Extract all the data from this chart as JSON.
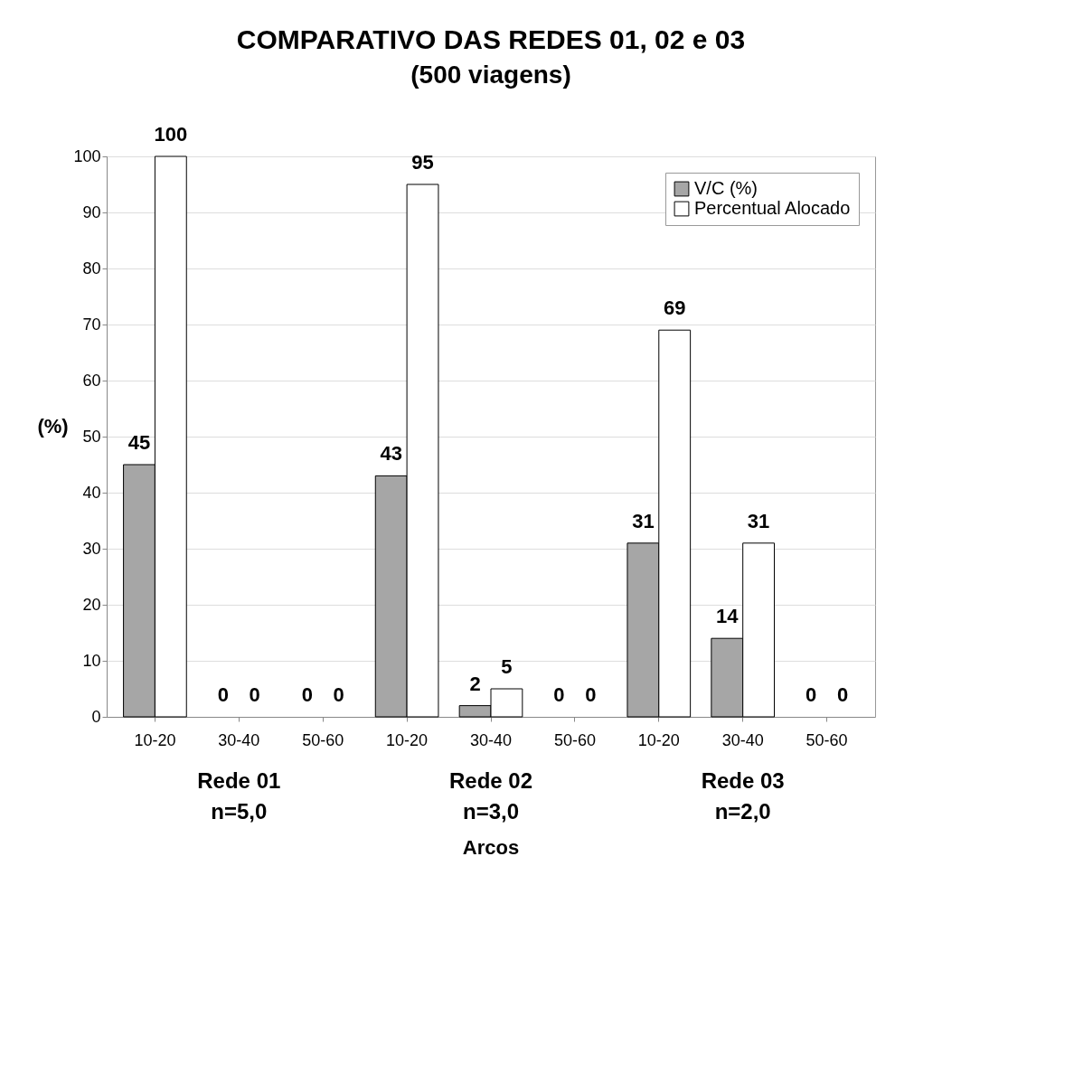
{
  "chart_data": {
    "type": "bar",
    "title": "COMPARATIVO DAS REDES 01, 02 e 03",
    "subtitle": "(500 viagens)",
    "ylabel": "(%)",
    "xlabel": "Arcos",
    "categories": [
      "10-20",
      "30-40",
      "50-60",
      "10-20",
      "30-40",
      "50-60",
      "10-20",
      "30-40",
      "50-60"
    ],
    "series": [
      {
        "name": "V/C (%)",
        "color": "#a6a6a6",
        "values": [
          45,
          0,
          0,
          43,
          2,
          0,
          31,
          14,
          0
        ]
      },
      {
        "name": "Percentual Alocado",
        "color": "#ffffff",
        "values": [
          100,
          0,
          0,
          95,
          5,
          0,
          69,
          31,
          0
        ]
      }
    ],
    "ylim": [
      0,
      100
    ],
    "yticks": [
      0,
      10,
      20,
      30,
      40,
      50,
      60,
      70,
      80,
      90,
      100
    ],
    "grid": "y",
    "legend": "top right",
    "data_labels": true,
    "annotations": [
      "Rede 01\nn=5,0",
      "Rede 02\nn=3,0",
      "Rede 03\nn=2,0"
    ]
  }
}
